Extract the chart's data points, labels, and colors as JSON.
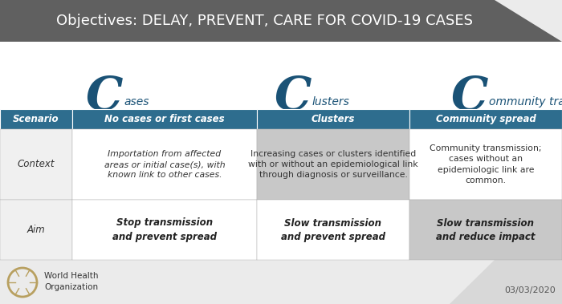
{
  "title": "Objectives: DELAY, PREVENT, CARE FOR COVID-19 CASES",
  "title_bg": "#606060",
  "title_color": "#ffffff",
  "bg_color": "#ebebeb",
  "header_bg": "#2e6d8e",
  "header_color": "#ffffff",
  "alt_bg": "#c8c8c8",
  "white_bg": "#ffffff",
  "label_col_bg": "#f0f0f0",
  "c_color": "#1a5276",
  "columns": [
    "Scenario",
    "No cases or first cases",
    "Clusters",
    "Community spread"
  ],
  "c_labels": [
    "ases",
    "lusters",
    "ommunity transmission"
  ],
  "context_col0": "Context",
  "context_col1": "Importation from affected\nareas or initial case(s), with\nknown link to other cases.",
  "context_col2": "Increasing cases or clusters identified\nwith or without an epidemiological link\nthrough diagnosis or surveillance.",
  "context_col3": "Community transmission;\ncases without an\nepidemiologic link are\ncommon.",
  "aim_col0": "Aim",
  "aim_col1": "Stop transmission\nand prevent spread",
  "aim_col2": "Slow transmission\nand prevent spread",
  "aim_col3": "Slow transmission\nand reduce impact",
  "who_text": "World Health\nOrganization",
  "date_text": "03/03/2020"
}
